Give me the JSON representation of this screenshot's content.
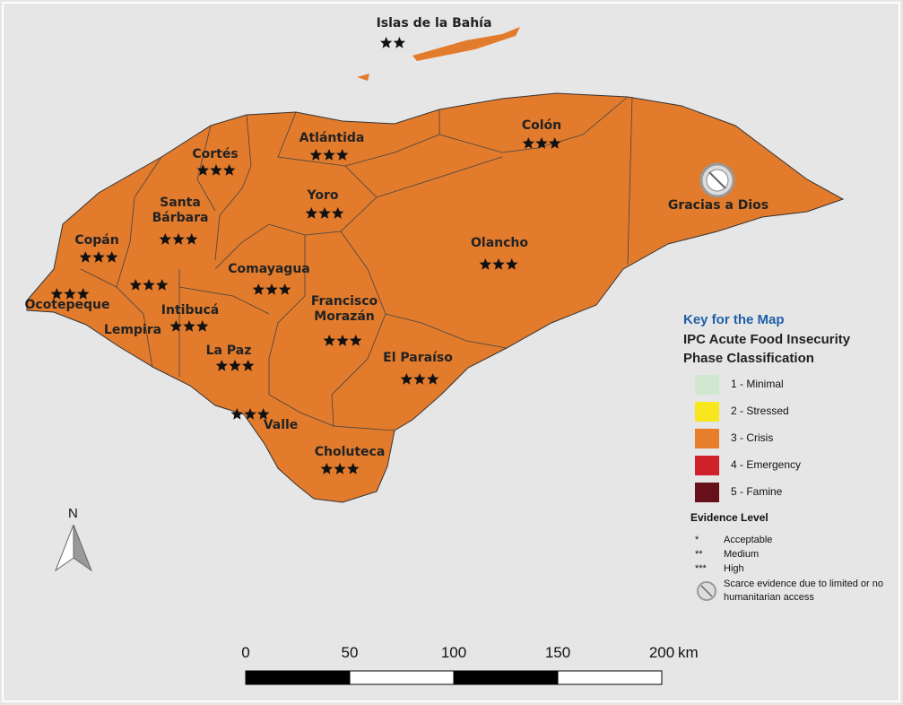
{
  "departments": [
    {
      "name": "Islas de la Bahía",
      "evidence": 2
    },
    {
      "name": "Atlántida",
      "evidence": 3
    },
    {
      "name": "Colón",
      "evidence": 3
    },
    {
      "name": "Cortés",
      "evidence": 3
    },
    {
      "name": "Yoro",
      "evidence": 3
    },
    {
      "name": "Santa Bárbara",
      "evidence": 3
    },
    {
      "name": "Copán",
      "evidence": 3
    },
    {
      "name": "Olancho",
      "evidence": 3
    },
    {
      "name": "Comayagua",
      "evidence": 3
    },
    {
      "name": "Ocotepeque",
      "evidence": 3
    },
    {
      "name": "Lempira",
      "evidence": 3
    },
    {
      "name": "Intibucá",
      "evidence": 3
    },
    {
      "name": "Francisco Morazán",
      "evidence": 3
    },
    {
      "name": "La Paz",
      "evidence": 3
    },
    {
      "name": "El Paraíso",
      "evidence": 3
    },
    {
      "name": "Valle",
      "evidence": 3
    },
    {
      "name": "Choluteca",
      "evidence": 3
    },
    {
      "name": "Gracias a Dios",
      "scarce": true
    }
  ],
  "legend": {
    "title": "Key for the Map",
    "subtitle": "IPC Acute Food Insecurity Phase Classification",
    "phases": [
      {
        "label": "1 - Minimal",
        "color": "#cfe8cf"
      },
      {
        "label": "2 - Stressed",
        "color": "#f8e71c"
      },
      {
        "label": "3 - Crisis",
        "color": "#e67e2a"
      },
      {
        "label": "4 - Emergency",
        "color": "#d0202a"
      },
      {
        "label": "5 - Famine",
        "color": "#66111a"
      }
    ],
    "evidence_title": "Evidence Level",
    "evidence_items": [
      {
        "symbol": "*",
        "label": "Acceptable"
      },
      {
        "symbol": "**",
        "label": "Medium"
      },
      {
        "symbol": "***",
        "label": "High"
      }
    ],
    "scarce_label": "Scarce evidence due to limited or no humanitarian access"
  },
  "map_color": "#e27b2c",
  "scale": {
    "ticks": [
      0,
      50,
      100,
      150,
      200
    ],
    "unit": "km"
  },
  "north": "N"
}
